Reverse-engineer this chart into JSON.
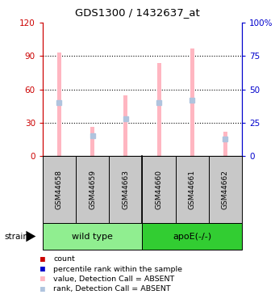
{
  "title": "GDS1300 / 1432637_at",
  "samples": [
    "GSM44658",
    "GSM44659",
    "GSM44663",
    "GSM44660",
    "GSM44661",
    "GSM44662"
  ],
  "bar_values": [
    93,
    26,
    55,
    84,
    97,
    22
  ],
  "rank_values": [
    40,
    15,
    28,
    40,
    42,
    13
  ],
  "left_ylim": [
    0,
    120
  ],
  "right_ylim": [
    0,
    100
  ],
  "left_yticks": [
    0,
    30,
    60,
    90,
    120
  ],
  "right_yticks": [
    0,
    25,
    50,
    75,
    100
  ],
  "right_yticklabels": [
    "0",
    "25",
    "50",
    "75",
    "100%"
  ],
  "bar_color_absent": "#FFB6C1",
  "rank_color_absent": "#B0C4DE",
  "left_axis_color": "#CC0000",
  "right_axis_color": "#0000CC",
  "grid_color": "#000000",
  "bg_color": "#FFFFFF",
  "sample_bg": "#C8C8C8",
  "group1_color": "#90EE90",
  "group2_color": "#32CD32",
  "legend_items": [
    {
      "color": "#CC0000",
      "label": "count"
    },
    {
      "color": "#0000CC",
      "label": "percentile rank within the sample"
    },
    {
      "color": "#FFB6C1",
      "label": "value, Detection Call = ABSENT"
    },
    {
      "color": "#B0C4DE",
      "label": "rank, Detection Call = ABSENT"
    }
  ]
}
